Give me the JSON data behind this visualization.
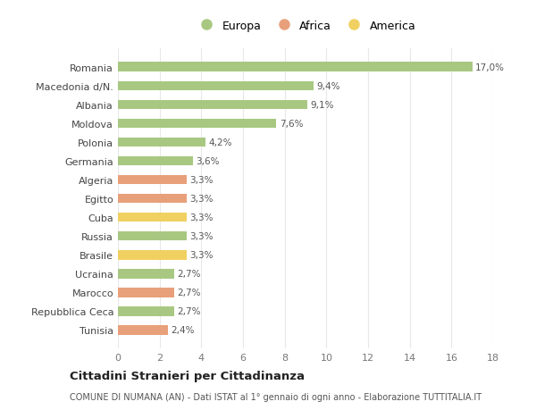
{
  "categories": [
    "Tunisia",
    "Repubblica Ceca",
    "Marocco",
    "Ucraina",
    "Brasile",
    "Russia",
    "Cuba",
    "Egitto",
    "Algeria",
    "Germania",
    "Polonia",
    "Moldova",
    "Albania",
    "Macedonia d/N.",
    "Romania"
  ],
  "values": [
    2.4,
    2.7,
    2.7,
    2.7,
    3.3,
    3.3,
    3.3,
    3.3,
    3.3,
    3.6,
    4.2,
    7.6,
    9.1,
    9.4,
    17.0
  ],
  "labels": [
    "2,4%",
    "2,7%",
    "2,7%",
    "2,7%",
    "3,3%",
    "3,3%",
    "3,3%",
    "3,3%",
    "3,3%",
    "3,6%",
    "4,2%",
    "7,6%",
    "9,1%",
    "9,4%",
    "17,0%"
  ],
  "continent": [
    "Africa",
    "Europa",
    "Africa",
    "Europa",
    "America",
    "Europa",
    "America",
    "Africa",
    "Africa",
    "Europa",
    "Europa",
    "Europa",
    "Europa",
    "Europa",
    "Europa"
  ],
  "colors": {
    "Europa": "#a8c882",
    "Africa": "#e8a07a",
    "America": "#f0d060"
  },
  "title": "Cittadini Stranieri per Cittadinanza",
  "subtitle": "COMUNE DI NUMANA (AN) - Dati ISTAT al 1° gennaio di ogni anno - Elaborazione TUTTITALIA.IT",
  "xlim": [
    0,
    18
  ],
  "xticks": [
    0,
    2,
    4,
    6,
    8,
    10,
    12,
    14,
    16,
    18
  ],
  "bg_color": "#ffffff",
  "grid_color": "#e8e8e8",
  "bar_height": 0.5
}
